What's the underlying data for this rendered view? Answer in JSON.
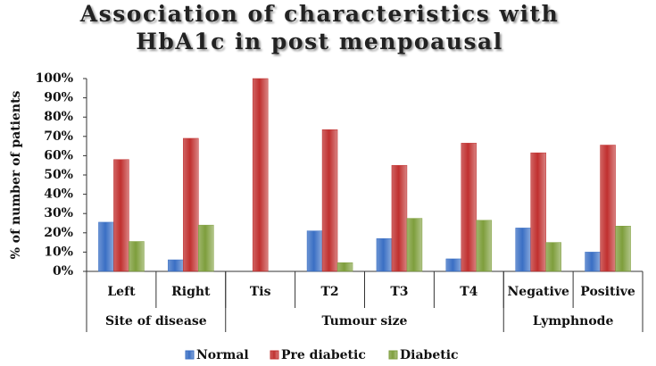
{
  "chart_data": {
    "type": "bar",
    "title": "Association of characteristics with HbA1c in post menpoausal",
    "y_label": "% of number of patients",
    "categories": [
      "Left",
      "Right",
      "Tis",
      "T2",
      "T3",
      "T4",
      "Negative",
      "Positive"
    ],
    "groups": [
      {
        "label": "Site of disease",
        "span": 2
      },
      {
        "label": "Tumour size",
        "span": 4
      },
      {
        "label": "Lymphnode",
        "span": 2
      }
    ],
    "series": [
      {
        "name": "Normal",
        "color": "#3a6fc4",
        "values": [
          25.5,
          6,
          0,
          21,
          17,
          6.5,
          22.5,
          10
        ]
      },
      {
        "name": "Pre diabetic",
        "color": "#c0302f",
        "values": [
          58,
          69,
          100,
          73.5,
          55,
          66.5,
          61.5,
          65.5
        ]
      },
      {
        "name": "Diabetic",
        "color": "#7e9e3c",
        "values": [
          15.5,
          24,
          0,
          4.5,
          27.5,
          26.5,
          15,
          23.5
        ]
      }
    ],
    "ylim": [
      0,
      100
    ],
    "yticks": [
      {
        "value": 0,
        "label": "0%"
      },
      {
        "value": 10,
        "label": "10%"
      },
      {
        "value": 20,
        "label": "20%"
      },
      {
        "value": 30,
        "label": "30%"
      },
      {
        "value": 40,
        "label": "40%"
      },
      {
        "value": 50,
        "label": "50%"
      },
      {
        "value": 60,
        "label": "60%"
      },
      {
        "value": 70,
        "label": "70%"
      },
      {
        "value": 80,
        "label": "80%"
      },
      {
        "value": 90,
        "label": "90%"
      },
      {
        "value": 100,
        "label": "100%"
      }
    ],
    "grid": false,
    "legend": "bottom"
  }
}
